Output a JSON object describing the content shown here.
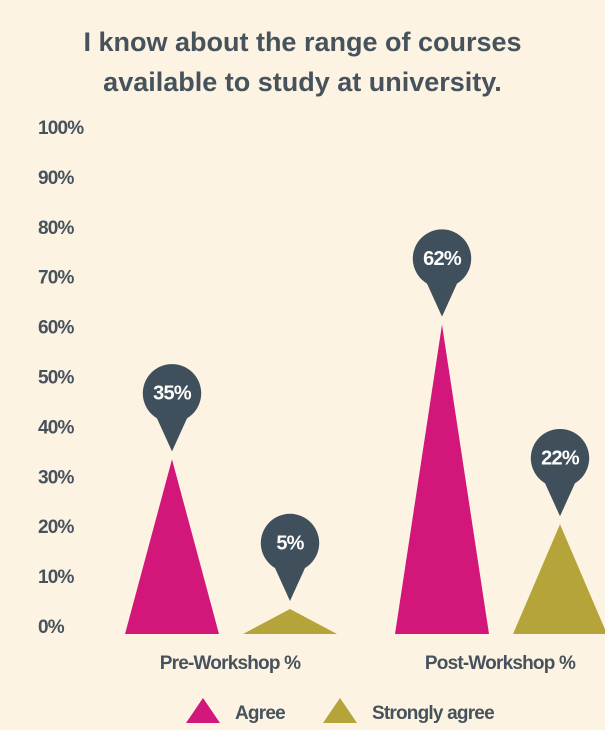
{
  "chart_data": {
    "type": "triangle-bar",
    "title": "I know about the range of courses available to study at university.",
    "categories": [
      "Pre-Workshop %",
      "Post-Workshop %"
    ],
    "series": [
      {
        "name": "Agree",
        "color": "#d3177a",
        "values": [
          35,
          62
        ],
        "value_labels": [
          "35%",
          "62%"
        ]
      },
      {
        "name": "Strongly agree",
        "color": "#b4a43a",
        "values": [
          5,
          22
        ],
        "value_labels": [
          "5%",
          "22%"
        ]
      }
    ],
    "ylim": [
      0,
      100
    ],
    "yticks": [
      {
        "value": 0,
        "label": "0%"
      },
      {
        "value": 10,
        "label": "10%"
      },
      {
        "value": 20,
        "label": "20%"
      },
      {
        "value": 30,
        "label": "30%"
      },
      {
        "value": 40,
        "label": "40%"
      },
      {
        "value": 50,
        "label": "50%"
      },
      {
        "value": 60,
        "label": "60%"
      },
      {
        "value": 70,
        "label": "70%"
      },
      {
        "value": 80,
        "label": "80%"
      },
      {
        "value": 90,
        "label": "90%"
      },
      {
        "value": 100,
        "label": "100%"
      }
    ],
    "grid": false,
    "legend": "bottom"
  }
}
